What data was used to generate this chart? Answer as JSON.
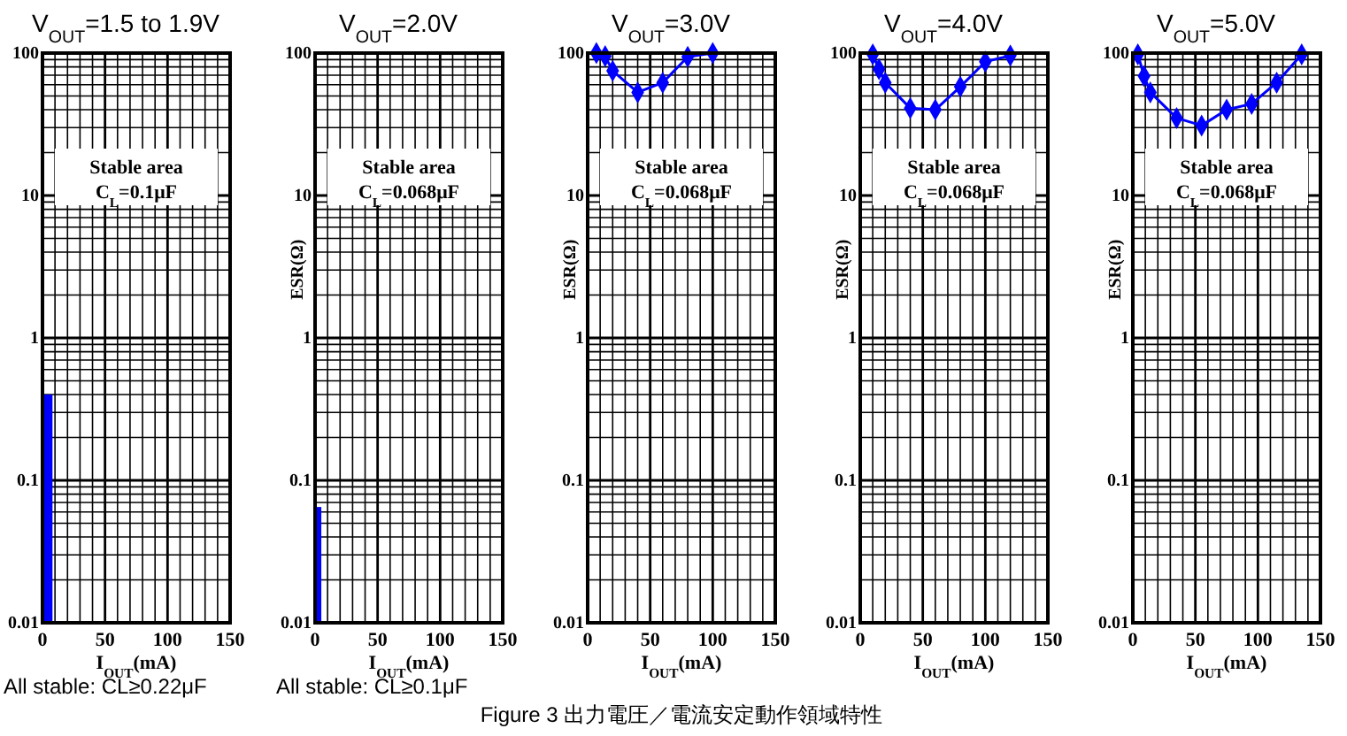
{
  "chart_data": [
    {
      "type": "histogram",
      "title": "V$_{OUT}$=1.5 to 1.9V",
      "xlabel": "I$_{OUT}$(mA)",
      "bins": [
        0,
        8
      ],
      "values": [
        0.4
      ],
      "color": "#0000ff",
      "log": true,
      "grid": true,
      "xlim": [
        0,
        150
      ],
      "ylim": [
        0.01,
        100
      ],
      "xticks": [
        0,
        {
          "value": 10,
          "label": null
        },
        {
          "value": 20,
          "label": null
        },
        {
          "value": 30,
          "label": null
        },
        {
          "value": 40,
          "label": null
        },
        50,
        {
          "value": 60,
          "label": null
        },
        {
          "value": 70,
          "label": null
        },
        {
          "value": 80,
          "label": null
        },
        {
          "value": 90,
          "label": null
        },
        100,
        {
          "value": 110,
          "label": null
        },
        {
          "value": 120,
          "label": null
        },
        {
          "value": 130,
          "label": null
        },
        {
          "value": 140,
          "label": null
        },
        150
      ],
      "yticks": [
        0.01,
        {
          "value": 0.02,
          "label": null
        },
        {
          "value": 0.03,
          "label": null
        },
        {
          "value": 0.04,
          "label": null
        },
        {
          "value": 0.05,
          "label": null
        },
        {
          "value": 0.06,
          "label": null
        },
        {
          "value": 0.07,
          "label": null
        },
        {
          "value": 0.08,
          "label": null
        },
        {
          "value": 0.09,
          "label": null
        },
        0.1,
        {
          "value": 0.2,
          "label": null
        },
        {
          "value": 0.3,
          "label": null
        },
        {
          "value": 0.4,
          "label": null
        },
        {
          "value": 0.5,
          "label": null
        },
        {
          "value": 0.6,
          "label": null
        },
        {
          "value": 0.7,
          "label": null
        },
        {
          "value": 0.8,
          "label": null
        },
        {
          "value": 0.9,
          "label": null
        },
        1,
        {
          "value": 2,
          "label": null
        },
        {
          "value": 3,
          "label": null
        },
        {
          "value": 4,
          "label": null
        },
        {
          "value": 5,
          "label": null
        },
        {
          "value": 6,
          "label": null
        },
        {
          "value": 7,
          "label": null
        },
        {
          "value": 8,
          "label": null
        },
        {
          "value": 9,
          "label": null
        },
        10,
        {
          "value": 20,
          "label": null
        },
        {
          "value": 30,
          "label": null
        },
        {
          "value": 40,
          "label": null
        },
        {
          "value": 50,
          "label": null
        },
        {
          "value": 60,
          "label": null
        },
        {
          "value": 70,
          "label": null
        },
        {
          "value": 80,
          "label": null
        },
        {
          "value": 90,
          "label": null
        },
        100
      ],
      "annotations": [
        "Stable area",
        "C$_{L}$=0.1μF",
        "All stable: CL≥0.22μF"
      ]
    },
    {
      "type": "histogram",
      "title": "V$_{OUT}$=2.0V",
      "xlabel": "I$_{OUT}$(mA)",
      "ylabel": "ESR(Ω)",
      "bins": [
        0,
        5
      ],
      "values": [
        0.065
      ],
      "color": "#0000ff",
      "log": true,
      "grid": true,
      "xlim": [
        0,
        150
      ],
      "ylim": [
        0.01,
        100
      ],
      "xticks": [
        0,
        {
          "value": 10,
          "label": null
        },
        {
          "value": 20,
          "label": null
        },
        {
          "value": 30,
          "label": null
        },
        {
          "value": 40,
          "label": null
        },
        50,
        {
          "value": 60,
          "label": null
        },
        {
          "value": 70,
          "label": null
        },
        {
          "value": 80,
          "label": null
        },
        {
          "value": 90,
          "label": null
        },
        100,
        {
          "value": 110,
          "label": null
        },
        {
          "value": 120,
          "label": null
        },
        {
          "value": 130,
          "label": null
        },
        {
          "value": 140,
          "label": null
        },
        150
      ],
      "yticks": [
        0.01,
        {
          "value": 0.02,
          "label": null
        },
        {
          "value": 0.03,
          "label": null
        },
        {
          "value": 0.04,
          "label": null
        },
        {
          "value": 0.05,
          "label": null
        },
        {
          "value": 0.06,
          "label": null
        },
        {
          "value": 0.07,
          "label": null
        },
        {
          "value": 0.08,
          "label": null
        },
        {
          "value": 0.09,
          "label": null
        },
        0.1,
        {
          "value": 0.2,
          "label": null
        },
        {
          "value": 0.3,
          "label": null
        },
        {
          "value": 0.4,
          "label": null
        },
        {
          "value": 0.5,
          "label": null
        },
        {
          "value": 0.6,
          "label": null
        },
        {
          "value": 0.7,
          "label": null
        },
        {
          "value": 0.8,
          "label": null
        },
        {
          "value": 0.9,
          "label": null
        },
        1,
        {
          "value": 2,
          "label": null
        },
        {
          "value": 3,
          "label": null
        },
        {
          "value": 4,
          "label": null
        },
        {
          "value": 5,
          "label": null
        },
        {
          "value": 6,
          "label": null
        },
        {
          "value": 7,
          "label": null
        },
        {
          "value": 8,
          "label": null
        },
        {
          "value": 9,
          "label": null
        },
        10,
        {
          "value": 20,
          "label": null
        },
        {
          "value": 30,
          "label": null
        },
        {
          "value": 40,
          "label": null
        },
        {
          "value": 50,
          "label": null
        },
        {
          "value": 60,
          "label": null
        },
        {
          "value": 70,
          "label": null
        },
        {
          "value": 80,
          "label": null
        },
        {
          "value": 90,
          "label": null
        },
        100
      ],
      "annotations": [
        "Stable area",
        "C$_{L}$=0.068μF",
        "All stable: CL≥0.1μF"
      ]
    },
    {
      "type": "line",
      "title": "V$_{OUT}$=3.0V",
      "xlabel": "I$_{OUT}$(mA)",
      "ylabel": "ESR(Ω)",
      "x": [
        7,
        14,
        20,
        40,
        60,
        80,
        100
      ],
      "values": [
        100,
        95,
        75,
        53,
        62,
        94,
        100
      ],
      "color": "#0000ff",
      "marker": "diamond",
      "log": true,
      "grid": true,
      "xlim": [
        0,
        150
      ],
      "ylim": [
        0.01,
        100
      ],
      "xticks": [
        0,
        {
          "value": 10,
          "label": null
        },
        {
          "value": 20,
          "label": null
        },
        {
          "value": 30,
          "label": null
        },
        {
          "value": 40,
          "label": null
        },
        50,
        {
          "value": 60,
          "label": null
        },
        {
          "value": 70,
          "label": null
        },
        {
          "value": 80,
          "label": null
        },
        {
          "value": 90,
          "label": null
        },
        100,
        {
          "value": 110,
          "label": null
        },
        {
          "value": 120,
          "label": null
        },
        {
          "value": 130,
          "label": null
        },
        {
          "value": 140,
          "label": null
        },
        150
      ],
      "yticks": [
        0.01,
        {
          "value": 0.02,
          "label": null
        },
        {
          "value": 0.03,
          "label": null
        },
        {
          "value": 0.04,
          "label": null
        },
        {
          "value": 0.05,
          "label": null
        },
        {
          "value": 0.06,
          "label": null
        },
        {
          "value": 0.07,
          "label": null
        },
        {
          "value": 0.08,
          "label": null
        },
        {
          "value": 0.09,
          "label": null
        },
        0.1,
        {
          "value": 0.2,
          "label": null
        },
        {
          "value": 0.3,
          "label": null
        },
        {
          "value": 0.4,
          "label": null
        },
        {
          "value": 0.5,
          "label": null
        },
        {
          "value": 0.6,
          "label": null
        },
        {
          "value": 0.7,
          "label": null
        },
        {
          "value": 0.8,
          "label": null
        },
        {
          "value": 0.9,
          "label": null
        },
        1,
        {
          "value": 2,
          "label": null
        },
        {
          "value": 3,
          "label": null
        },
        {
          "value": 4,
          "label": null
        },
        {
          "value": 5,
          "label": null
        },
        {
          "value": 6,
          "label": null
        },
        {
          "value": 7,
          "label": null
        },
        {
          "value": 8,
          "label": null
        },
        {
          "value": 9,
          "label": null
        },
        10,
        {
          "value": 20,
          "label": null
        },
        {
          "value": 30,
          "label": null
        },
        {
          "value": 40,
          "label": null
        },
        {
          "value": 50,
          "label": null
        },
        {
          "value": 60,
          "label": null
        },
        {
          "value": 70,
          "label": null
        },
        {
          "value": 80,
          "label": null
        },
        {
          "value": 90,
          "label": null
        },
        100
      ],
      "annotations": [
        "Stable area",
        "C$_{L}$=0.068μF",
        "Figure 3  出力電圧／電流安定動作領域特性"
      ]
    },
    {
      "type": "line",
      "title": "V$_{OUT}$=4.0V",
      "xlabel": "I$_{OUT}$(mA)",
      "ylabel": "ESR(Ω)",
      "x": [
        10,
        15,
        20,
        40,
        60,
        80,
        100,
        120
      ],
      "values": [
        98,
        77,
        62,
        41,
        40,
        58,
        87,
        96
      ],
      "color": "#0000ff",
      "marker": "diamond",
      "log": true,
      "grid": true,
      "xlim": [
        0,
        150
      ],
      "ylim": [
        0.01,
        100
      ],
      "xticks": [
        0,
        {
          "value": 10,
          "label": null
        },
        {
          "value": 20,
          "label": null
        },
        {
          "value": 30,
          "label": null
        },
        {
          "value": 40,
          "label": null
        },
        50,
        {
          "value": 60,
          "label": null
        },
        {
          "value": 70,
          "label": null
        },
        {
          "value": 80,
          "label": null
        },
        {
          "value": 90,
          "label": null
        },
        100,
        {
          "value": 110,
          "label": null
        },
        {
          "value": 120,
          "label": null
        },
        {
          "value": 130,
          "label": null
        },
        {
          "value": 140,
          "label": null
        },
        150
      ],
      "yticks": [
        0.01,
        {
          "value": 0.02,
          "label": null
        },
        {
          "value": 0.03,
          "label": null
        },
        {
          "value": 0.04,
          "label": null
        },
        {
          "value": 0.05,
          "label": null
        },
        {
          "value": 0.06,
          "label": null
        },
        {
          "value": 0.07,
          "label": null
        },
        {
          "value": 0.08,
          "label": null
        },
        {
          "value": 0.09,
          "label": null
        },
        0.1,
        {
          "value": 0.2,
          "label": null
        },
        {
          "value": 0.3,
          "label": null
        },
        {
          "value": 0.4,
          "label": null
        },
        {
          "value": 0.5,
          "label": null
        },
        {
          "value": 0.6,
          "label": null
        },
        {
          "value": 0.7,
          "label": null
        },
        {
          "value": 0.8,
          "label": null
        },
        {
          "value": 0.9,
          "label": null
        },
        1,
        {
          "value": 2,
          "label": null
        },
        {
          "value": 3,
          "label": null
        },
        {
          "value": 4,
          "label": null
        },
        {
          "value": 5,
          "label": null
        },
        {
          "value": 6,
          "label": null
        },
        {
          "value": 7,
          "label": null
        },
        {
          "value": 8,
          "label": null
        },
        {
          "value": 9,
          "label": null
        },
        10,
        {
          "value": 20,
          "label": null
        },
        {
          "value": 30,
          "label": null
        },
        {
          "value": 40,
          "label": null
        },
        {
          "value": 50,
          "label": null
        },
        {
          "value": 60,
          "label": null
        },
        {
          "value": 70,
          "label": null
        },
        {
          "value": 80,
          "label": null
        },
        {
          "value": 90,
          "label": null
        },
        100
      ],
      "annotations": [
        "Stable area",
        "C$_{L}$=0.068μF"
      ]
    },
    {
      "type": "line",
      "title": "V$_{OUT}$=5.0V",
      "xlabel": "I$_{OUT}$(mA)",
      "ylabel": "ESR(Ω)",
      "x": [
        4,
        9,
        14,
        35,
        55,
        75,
        95,
        115,
        135
      ],
      "values": [
        98,
        69,
        53,
        35,
        31,
        40,
        44,
        62,
        98
      ],
      "color": "#0000ff",
      "marker": "diamond",
      "log": true,
      "grid": true,
      "xlim": [
        0,
        150
      ],
      "ylim": [
        0.01,
        100
      ],
      "xticks": [
        0,
        {
          "value": 10,
          "label": null
        },
        {
          "value": 20,
          "label": null
        },
        {
          "value": 30,
          "label": null
        },
        {
          "value": 40,
          "label": null
        },
        50,
        {
          "value": 60,
          "label": null
        },
        {
          "value": 70,
          "label": null
        },
        {
          "value": 80,
          "label": null
        },
        {
          "value": 90,
          "label": null
        },
        100,
        {
          "value": 110,
          "label": null
        },
        {
          "value": 120,
          "label": null
        },
        {
          "value": 130,
          "label": null
        },
        {
          "value": 140,
          "label": null
        },
        150
      ],
      "yticks": [
        0.01,
        {
          "value": 0.02,
          "label": null
        },
        {
          "value": 0.03,
          "label": null
        },
        {
          "value": 0.04,
          "label": null
        },
        {
          "value": 0.05,
          "label": null
        },
        {
          "value": 0.06,
          "label": null
        },
        {
          "value": 0.07,
          "label": null
        },
        {
          "value": 0.08,
          "label": null
        },
        {
          "value": 0.09,
          "label": null
        },
        0.1,
        {
          "value": 0.2,
          "label": null
        },
        {
          "value": 0.3,
          "label": null
        },
        {
          "value": 0.4,
          "label": null
        },
        {
          "value": 0.5,
          "label": null
        },
        {
          "value": 0.6,
          "label": null
        },
        {
          "value": 0.7,
          "label": null
        },
        {
          "value": 0.8,
          "label": null
        },
        {
          "value": 0.9,
          "label": null
        },
        1,
        {
          "value": 2,
          "label": null
        },
        {
          "value": 3,
          "label": null
        },
        {
          "value": 4,
          "label": null
        },
        {
          "value": 5,
          "label": null
        },
        {
          "value": 6,
          "label": null
        },
        {
          "value": 7,
          "label": null
        },
        {
          "value": 8,
          "label": null
        },
        {
          "value": 9,
          "label": null
        },
        10,
        {
          "value": 20,
          "label": null
        },
        {
          "value": 30,
          "label": null
        },
        {
          "value": 40,
          "label": null
        },
        {
          "value": 50,
          "label": null
        },
        {
          "value": 60,
          "label": null
        },
        {
          "value": 70,
          "label": null
        },
        {
          "value": 80,
          "label": null
        },
        {
          "value": 90,
          "label": null
        },
        100
      ],
      "annotations": [
        "Stable area",
        "C$_{L}$=0.068μF"
      ]
    }
  ]
}
